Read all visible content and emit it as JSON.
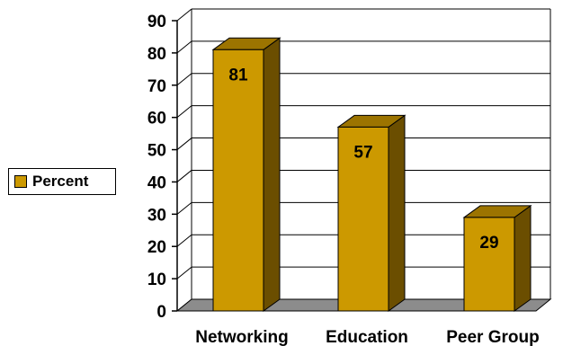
{
  "chart_data": {
    "type": "bar",
    "categories": [
      "Networking",
      "Education",
      "Peer Group"
    ],
    "series": [
      {
        "name": "Percent",
        "values": [
          81,
          57,
          29
        ]
      }
    ],
    "data_labels": [
      "81",
      "57",
      "29"
    ],
    "ylim": [
      0,
      90
    ],
    "yticks": [
      "0",
      "10",
      "20",
      "30",
      "40",
      "50",
      "60",
      "70",
      "80",
      "90"
    ],
    "grid": true,
    "legend_position": "left",
    "style": "3d",
    "colors": {
      "bar_front": "#CC9900",
      "bar_side": "#6B4E00",
      "bar_top": "#9C7400",
      "floor": "#8C8C8C",
      "grid": "#000000"
    }
  },
  "legend": {
    "label": "Percent"
  }
}
